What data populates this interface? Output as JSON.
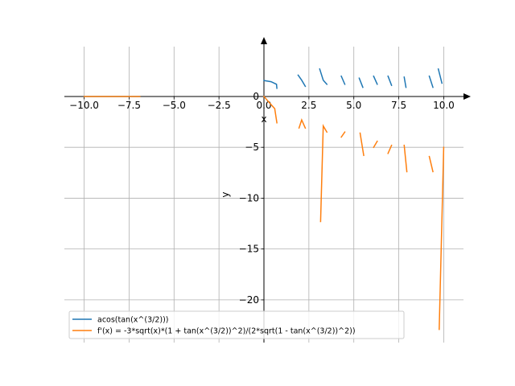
{
  "chart_data": {
    "type": "line",
    "xlabel": "x",
    "ylabel": "y",
    "xlim": [
      -11.1,
      11.1
    ],
    "ylim": [
      -24.2,
      4.9
    ],
    "grid": true,
    "legend_position": "lower-left",
    "x_ticks": [
      {
        "value": -10.0,
        "label": "−10.0"
      },
      {
        "value": -7.5,
        "label": "−7.5"
      },
      {
        "value": -5.0,
        "label": "−5.0"
      },
      {
        "value": -2.5,
        "label": "−2.5"
      },
      {
        "value": 0.0,
        "label": "0.0"
      },
      {
        "value": 2.5,
        "label": "2.5"
      },
      {
        "value": 5.0,
        "label": "5.0"
      },
      {
        "value": 7.5,
        "label": "7.5"
      },
      {
        "value": 10.0,
        "label": "10.0"
      }
    ],
    "y_ticks": [
      {
        "value": 0,
        "label": "0"
      },
      {
        "value": -5,
        "label": "−5"
      },
      {
        "value": -10,
        "label": "−10"
      },
      {
        "value": -15,
        "label": "−15"
      },
      {
        "value": -20,
        "label": "−20"
      }
    ],
    "series": [
      {
        "name": "acos(tan(x^(3/2)))",
        "color": "#1f77b4",
        "segments": [
          [
            [
              -10.0,
              0.0
            ],
            [
              -6.9,
              0.0
            ]
          ],
          [
            [
              0.0,
              1.57
            ],
            [
              0.4,
              1.45
            ],
            [
              0.7,
              1.2
            ],
            [
              0.72,
              0.8
            ]
          ],
          [
            [
              1.9,
              2.1
            ],
            [
              2.1,
              1.6
            ],
            [
              2.3,
              1.0
            ]
          ],
          [
            [
              3.1,
              2.7
            ],
            [
              3.3,
              1.6
            ],
            [
              3.5,
              1.2
            ]
          ],
          [
            [
              4.3,
              2.0
            ],
            [
              4.5,
              1.2
            ]
          ],
          [
            [
              5.3,
              1.8
            ],
            [
              5.5,
              0.9
            ]
          ],
          [
            [
              6.1,
              2.0
            ],
            [
              6.3,
              1.2
            ]
          ],
          [
            [
              6.9,
              2.0
            ],
            [
              7.1,
              1.1
            ]
          ],
          [
            [
              7.8,
              1.9
            ],
            [
              7.9,
              0.9
            ]
          ],
          [
            [
              9.2,
              2.0
            ],
            [
              9.4,
              0.9
            ]
          ],
          [
            [
              9.7,
              2.7
            ],
            [
              9.9,
              1.3
            ]
          ]
        ]
      },
      {
        "name": "f'(x) = -3*sqrt(x)*(1 + tan(x^(3/2))^2)/(2*sqrt(1 - tan(x^(3/2))^2))",
        "color": "#ff7f0e",
        "segments": [
          [
            [
              -10.0,
              0.0
            ],
            [
              -6.9,
              0.0
            ]
          ],
          [
            [
              0.0,
              0.0
            ],
            [
              0.3,
              -0.6
            ],
            [
              0.6,
              -1.2
            ],
            [
              0.72,
              -2.6
            ]
          ],
          [
            [
              1.95,
              -3.1
            ],
            [
              2.1,
              -2.3
            ],
            [
              2.3,
              -3.1
            ]
          ],
          [
            [
              3.15,
              -12.3
            ],
            [
              3.3,
              -2.9
            ],
            [
              3.5,
              -3.5
            ]
          ],
          [
            [
              4.3,
              -4.0
            ],
            [
              4.5,
              -3.5
            ]
          ],
          [
            [
              5.35,
              -3.6
            ],
            [
              5.55,
              -5.8
            ]
          ],
          [
            [
              6.1,
              -5.0
            ],
            [
              6.3,
              -4.4
            ]
          ],
          [
            [
              6.9,
              -5.6
            ],
            [
              7.1,
              -4.8
            ]
          ],
          [
            [
              7.8,
              -4.8
            ],
            [
              7.95,
              -7.4
            ]
          ],
          [
            [
              9.2,
              -5.9
            ],
            [
              9.4,
              -7.4
            ]
          ],
          [
            [
              9.75,
              -22.9
            ],
            [
              10.0,
              -5.0
            ]
          ]
        ]
      }
    ]
  }
}
